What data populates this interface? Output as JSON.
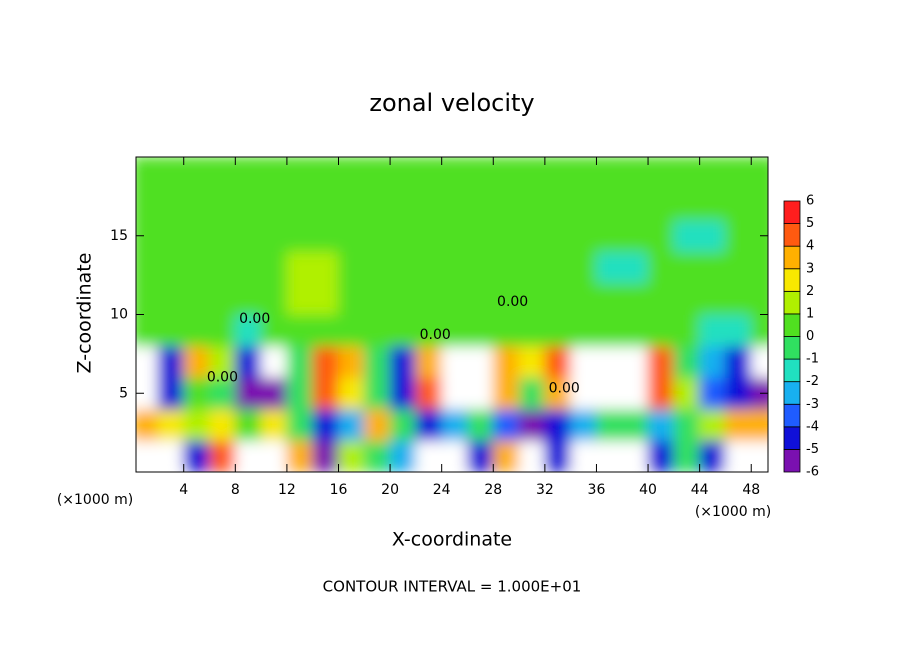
{
  "chart_data": {
    "type": "heatmap",
    "title": "zonal velocity",
    "x_label": "X-coordinate",
    "y_label": "Z-coordinate",
    "x_unit": "(×1000 m)",
    "y_unit": "(×1000 m)",
    "footer": "CONTOUR INTERVAL = 1.000E+01",
    "xlim": [
      0.3,
      49.3
    ],
    "ylim": [
      0,
      20
    ],
    "xticks": [
      4,
      8,
      12,
      16,
      20,
      24,
      28,
      32,
      36,
      40,
      44,
      48
    ],
    "yticks": [
      5,
      10,
      15
    ],
    "x": [
      1,
      3,
      5,
      7,
      9,
      11,
      13,
      15,
      17,
      19,
      21,
      23,
      25,
      27,
      29,
      31,
      33,
      35,
      37,
      39,
      41,
      43,
      45,
      47,
      49
    ],
    "z": [
      1,
      3,
      5,
      7,
      9,
      11,
      13,
      15,
      17,
      19
    ],
    "values": [
      [
        8,
        8,
        -4,
        5,
        8,
        8,
        4,
        -5,
        1.5,
        0,
        -2,
        8,
        8,
        -4,
        4,
        8,
        -4,
        8,
        8,
        8,
        -4,
        0,
        -4,
        8,
        8
      ],
      [
        4,
        3,
        1.5,
        3,
        1,
        2.5,
        0,
        -4,
        -2,
        4,
        0,
        -4,
        -2,
        0,
        -3,
        -5,
        -4,
        -2,
        0,
        0,
        -2,
        0,
        2,
        4,
        4
      ],
      [
        -8,
        -4,
        1,
        0,
        -6,
        -5,
        0,
        5,
        3,
        0,
        -4,
        5,
        8,
        8,
        4,
        -0.5,
        4,
        8,
        8,
        8,
        5,
        1.5,
        -3,
        -4,
        -5
      ],
      [
        -8,
        -4,
        4,
        1.5,
        -4,
        -8,
        0,
        5,
        4,
        0,
        -4,
        4,
        8,
        8,
        4,
        3,
        5,
        8,
        8,
        8,
        5,
        0,
        -2,
        -4,
        -8
      ],
      [
        0.5,
        0.5,
        0.5,
        0.5,
        -1,
        0.5,
        0.5,
        0.5,
        0.5,
        0.5,
        0.5,
        0.5,
        0.5,
        0.5,
        0.5,
        0.5,
        0.5,
        0.5,
        0.5,
        0.5,
        0.5,
        0.5,
        -1.5,
        -1.5,
        0.5
      ],
      [
        0.5,
        0.5,
        0.5,
        0.5,
        0.5,
        0.5,
        1.5,
        1.5,
        0.5,
        0.5,
        0.5,
        0.5,
        0.5,
        0.5,
        0.5,
        0.5,
        0.5,
        0.5,
        0.5,
        0.5,
        0.5,
        0.5,
        0.5,
        0.5,
        0.5
      ],
      [
        0.5,
        0.5,
        0.5,
        0.5,
        0.5,
        0.5,
        1.5,
        1.5,
        0.5,
        0.5,
        0.5,
        0.5,
        0.5,
        0.5,
        0.5,
        0.5,
        0.5,
        0.5,
        -1.5,
        -1.5,
        0.5,
        0.5,
        0.5,
        0.5,
        0.5
      ],
      [
        0.5,
        0.5,
        0.5,
        0.5,
        0.5,
        0.5,
        0.5,
        0.5,
        0.5,
        0.5,
        0.5,
        0.5,
        0.5,
        0.5,
        0.5,
        0.5,
        0.5,
        0.5,
        0.5,
        0.5,
        0.5,
        -1,
        -1,
        0.5,
        0.5
      ],
      [
        0.5,
        0.5,
        0.5,
        0.5,
        0.5,
        0.5,
        0.5,
        0.5,
        0.5,
        0.5,
        0.5,
        0.5,
        0.5,
        0.5,
        0.5,
        0.5,
        0.5,
        0.5,
        0.5,
        0.5,
        0.5,
        0.5,
        0.5,
        0.5,
        0.5
      ],
      [
        0.5,
        0.5,
        0.5,
        0.5,
        0.5,
        0.5,
        0.5,
        0.5,
        0.5,
        0.5,
        0.5,
        0.5,
        0.5,
        0.5,
        0.5,
        0.5,
        0.5,
        0.5,
        0.5,
        0.5,
        0.5,
        0.5,
        0.5,
        0.5,
        0.5
      ]
    ],
    "colorbar": {
      "levels": [
        -6,
        -5,
        -4,
        -3,
        -2,
        -1,
        0,
        1,
        2,
        3,
        4,
        5,
        6
      ],
      "colors": [
        "#7a10b0",
        "#1010d8",
        "#1f5cff",
        "#18b0f0",
        "#20e0c0",
        "#30e060",
        "#50e020",
        "#b0f000",
        "#f8e800",
        "#ffb000",
        "#ff5a10",
        "#ff1e1e",
        "#f4a0a8"
      ],
      "out_of_range_color": "#ffffff"
    },
    "contour_labels": [
      {
        "text": "0.00",
        "x": 9.5,
        "z": 9.7
      },
      {
        "text": "0.00",
        "x": 23.5,
        "z": 8.7
      },
      {
        "text": "0.00",
        "x": 29.5,
        "z": 10.8
      },
      {
        "text": "0.00",
        "x": 7,
        "z": 6
      },
      {
        "text": "0.00",
        "x": 33.5,
        "z": 5.3
      }
    ]
  }
}
